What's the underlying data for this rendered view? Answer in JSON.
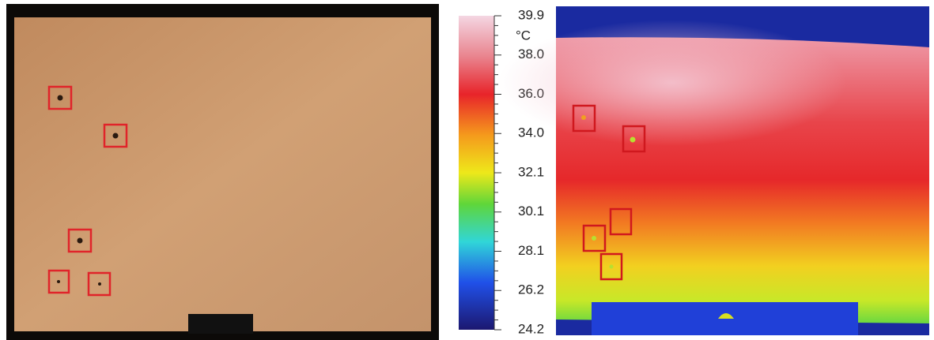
{
  "colorbar": {
    "unit": "°C",
    "ticks": [
      "39.9",
      "38.0",
      "36.0",
      "34.0",
      "32.1",
      "30.1",
      "28.1",
      "26.2",
      "24.2"
    ]
  }
}
